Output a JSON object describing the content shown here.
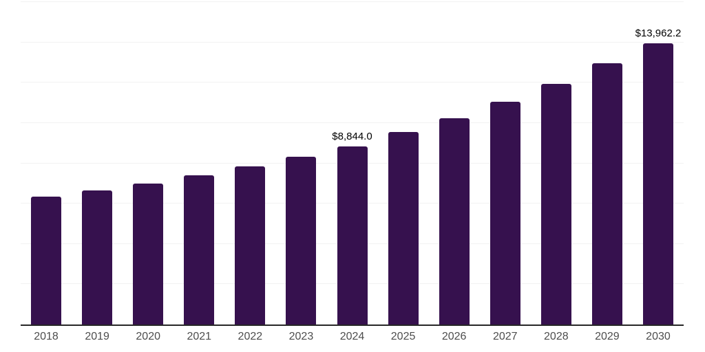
{
  "chart_data": {
    "type": "bar",
    "title": "",
    "xlabel": "",
    "ylabel": "",
    "categories": [
      "2018",
      "2019",
      "2020",
      "2021",
      "2022",
      "2023",
      "2024",
      "2025",
      "2026",
      "2027",
      "2028",
      "2029",
      "2030"
    ],
    "values": [
      6360,
      6670,
      6980,
      7420,
      7830,
      8340,
      8844.0,
      9560,
      10250,
      11060,
      11950,
      12970,
      13962.2
    ],
    "data_labels": [
      "",
      "",
      "",
      "",
      "",
      "",
      "$8,844.0",
      "",
      "",
      "",
      "",
      "",
      "$13,962.2"
    ],
    "ylim": [
      0,
      16000
    ],
    "gridline_step": 2000,
    "grid": "horizontal-only",
    "legend_position": "none",
    "colors": {
      "bar_fill": "#36114E",
      "axis_line": "#262626",
      "gridline": "#f2f2f2",
      "tick_label": "#4d4d4d",
      "data_label": "#000000",
      "background": "#ffffff"
    }
  }
}
